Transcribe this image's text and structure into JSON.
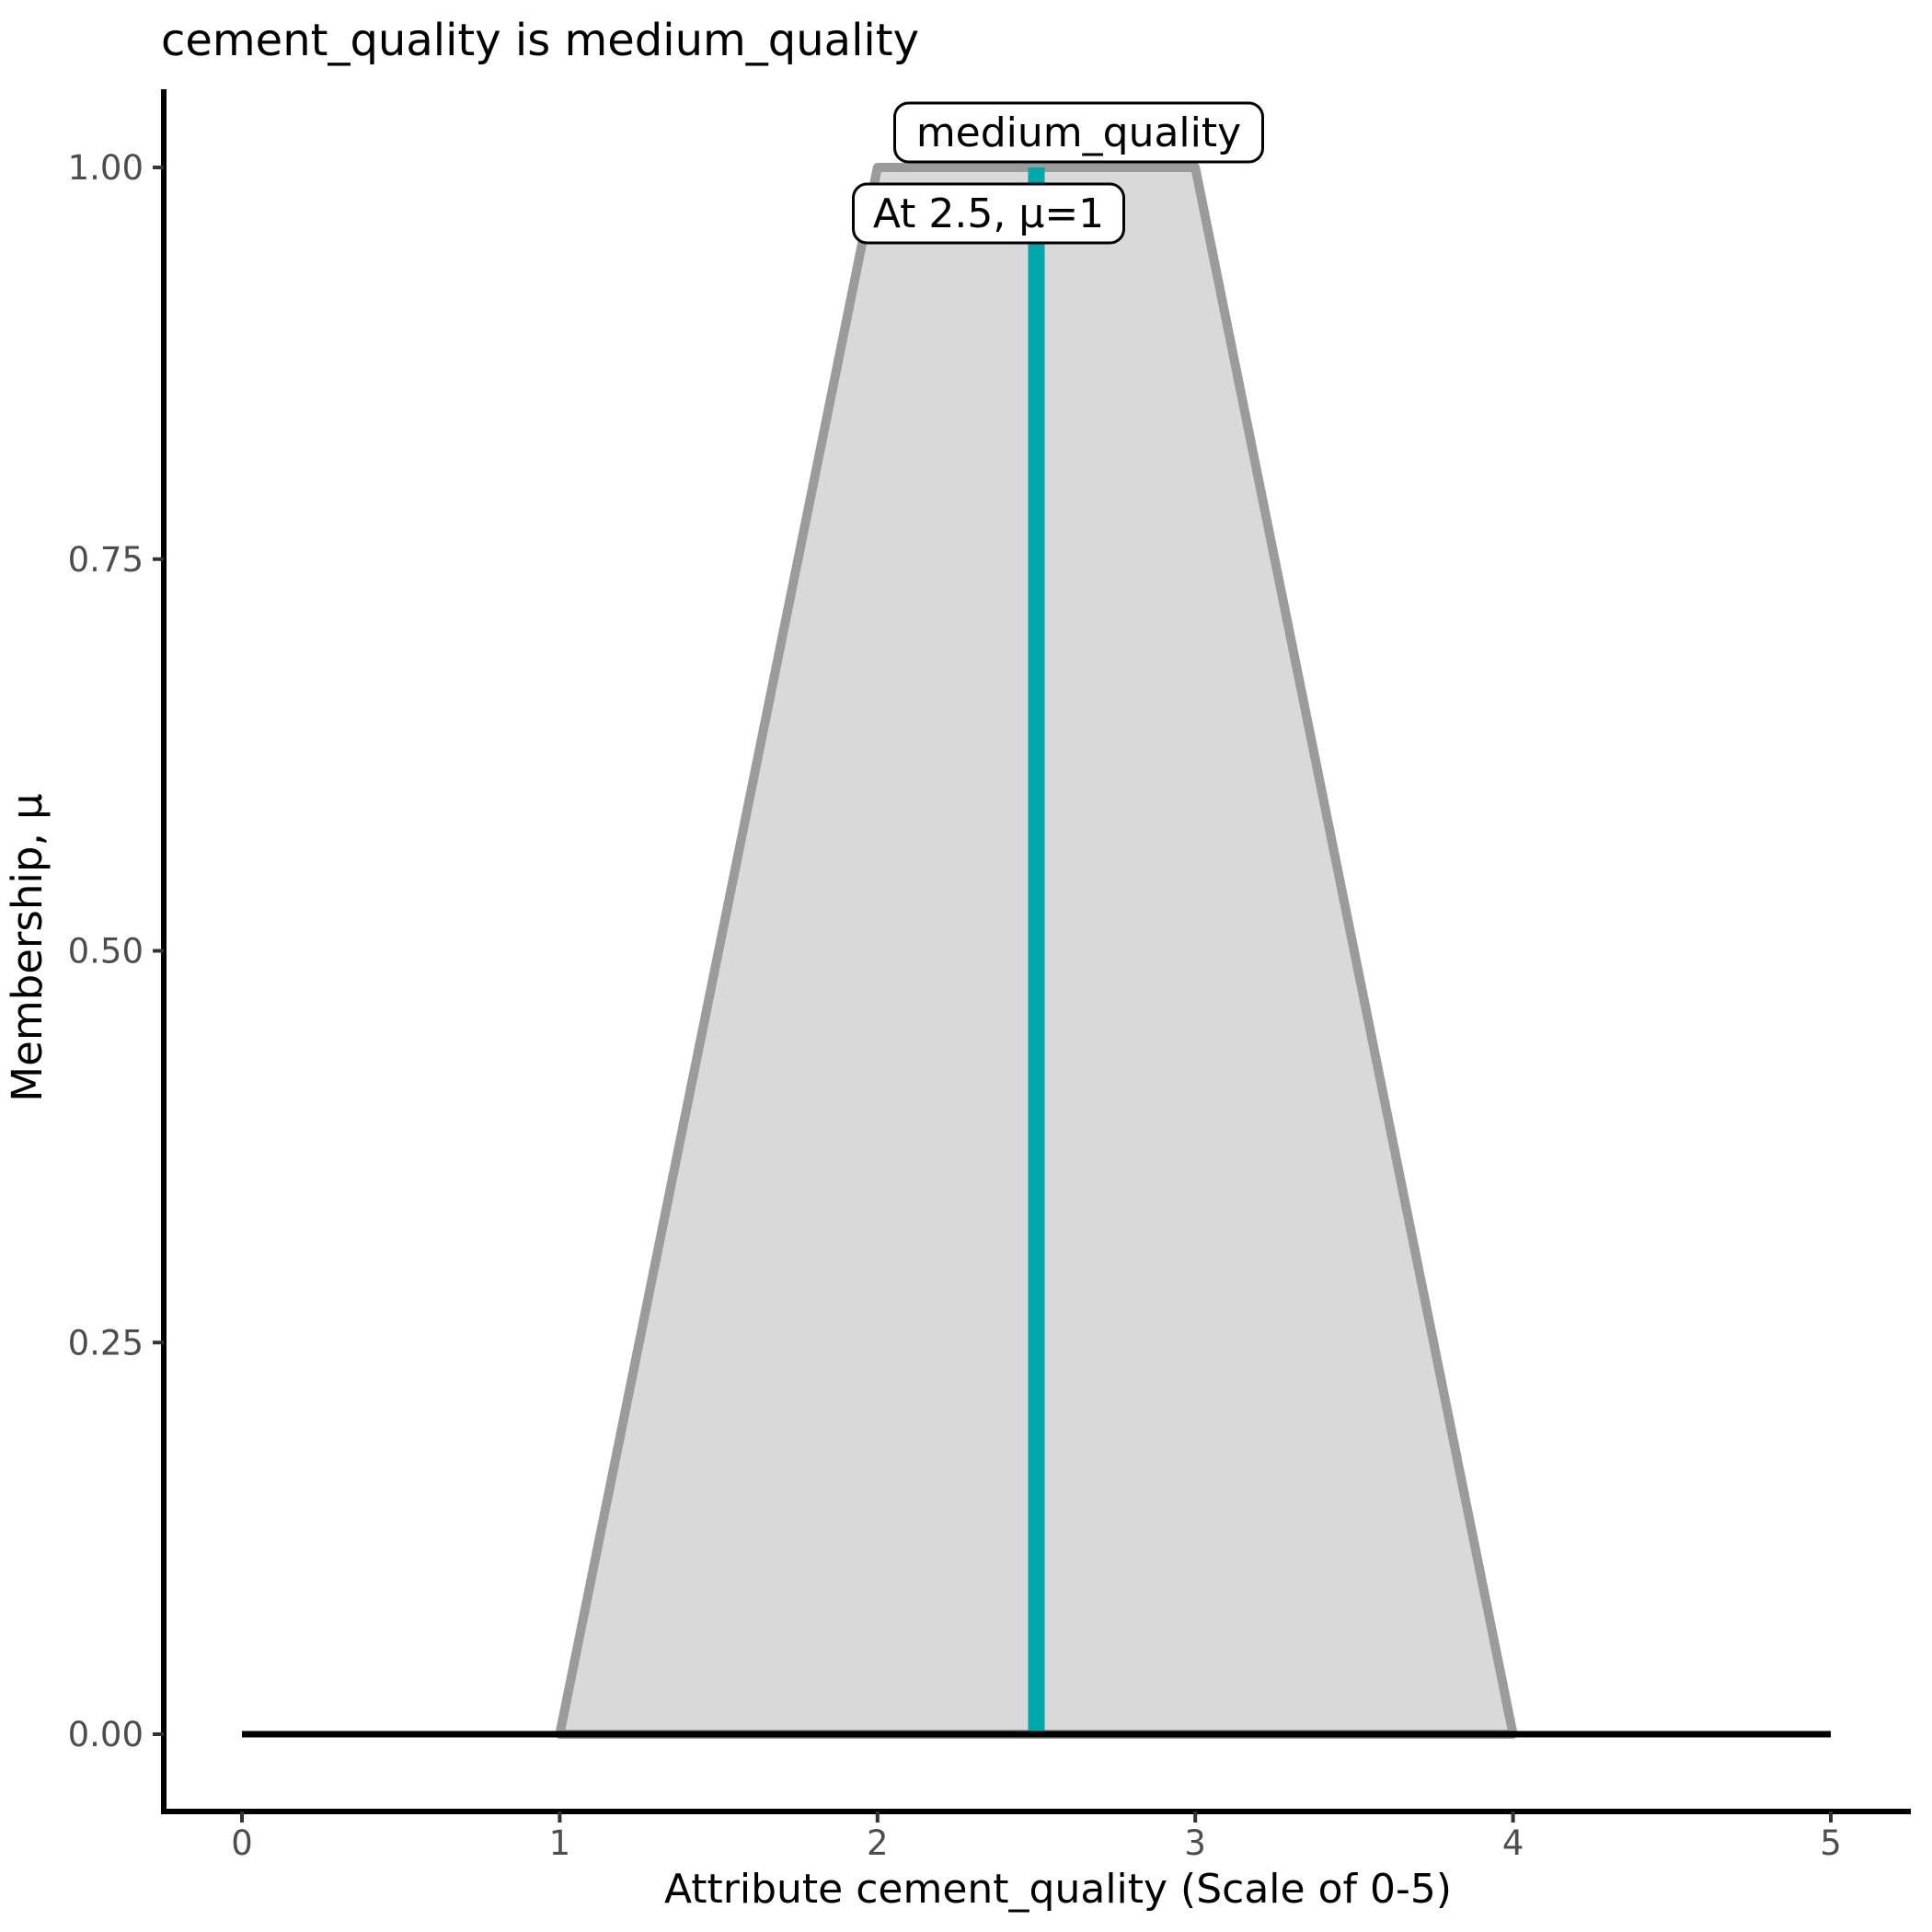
{
  "title": "cement_quality is medium_quality",
  "axes": {
    "x_label": "Attribute cement_quality (Scale of 0-5)",
    "y_label": "Membership, μ"
  },
  "annotations": {
    "set_label": "medium_quality",
    "point_label": "At 2.5, μ=1"
  },
  "colors": {
    "background": "#FFFFFF",
    "membership_fill": "#D9D9D9",
    "membership_stroke": "#9B9B9B",
    "marker_line": "#00A8AC",
    "baseline": "#000000",
    "axis_line": "#000000",
    "tick": "#333333",
    "tick_label": "#4D4D4D",
    "text": "#000000",
    "annotation_bg": "#FFFFFF",
    "annotation_border": "#000000"
  },
  "chart_data": {
    "type": "area",
    "title": "cement_quality is medium_quality",
    "xlabel": "Attribute cement_quality (Scale of 0-5)",
    "ylabel": "Membership, μ",
    "xlim": [
      0,
      5
    ],
    "ylim": [
      0,
      1
    ],
    "x_ticks": [
      0,
      1,
      2,
      3,
      4,
      5
    ],
    "y_ticks": [
      {
        "value": 0,
        "label": "0.00"
      },
      {
        "value": 0.25,
        "label": "0.25"
      },
      {
        "value": 0.5,
        "label": "0.50"
      },
      {
        "value": 0.75,
        "label": "0.75"
      },
      {
        "value": 1,
        "label": "1.00"
      }
    ],
    "grid": false,
    "legend": false,
    "series": [
      {
        "name": "medium_quality",
        "kind": "trapezoidal membership function",
        "x": [
          1,
          2,
          3,
          4
        ],
        "mu": [
          0,
          1,
          1,
          0
        ]
      }
    ],
    "baseline": {
      "x": [
        0,
        5
      ],
      "mu": 0
    },
    "marker": {
      "x": 2.5,
      "mu": 1,
      "label": "At 2.5, μ=1"
    }
  }
}
